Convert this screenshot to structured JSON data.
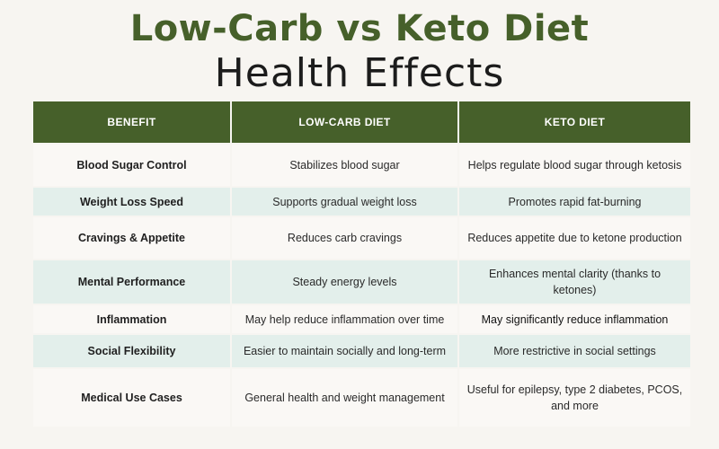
{
  "title": "Low-Carb vs Keto Diet",
  "subtitle": "Health Effects",
  "colors": {
    "header_green": "#46602a",
    "row_light": "#faf8f5",
    "row_tint": "#e3efeb"
  },
  "table": {
    "headers": [
      "BENEFIT",
      "LOW-CARB DIET",
      "KETO DIET"
    ],
    "rows": [
      {
        "benefit": "Blood Sugar Control",
        "low_carb": "Stabilizes blood sugar",
        "keto": "Helps regulate blood sugar through ketosis"
      },
      {
        "benefit": "Weight Loss Speed",
        "low_carb": "Supports gradual weight loss",
        "keto": "Promotes rapid fat-burning"
      },
      {
        "benefit": "Cravings & Appetite",
        "low_carb": "Reduces carb cravings",
        "keto": "Reduces appetite due to ketone production"
      },
      {
        "benefit": "Mental Performance",
        "low_carb": "Steady energy levels",
        "keto": "Enhances mental clarity (thanks to ketones)"
      },
      {
        "benefit": "Inflammation",
        "low_carb": "May help reduce inflammation over time",
        "keto": "May significantly reduce inflammation"
      },
      {
        "benefit": "Social Flexibility",
        "low_carb": "Easier to maintain socially and long-term",
        "keto": "More restrictive in social settings"
      },
      {
        "benefit": "Medical Use Cases",
        "low_carb": "General health and weight management",
        "keto": "Useful for epilepsy, type 2 diabetes, PCOS, and more"
      }
    ]
  }
}
